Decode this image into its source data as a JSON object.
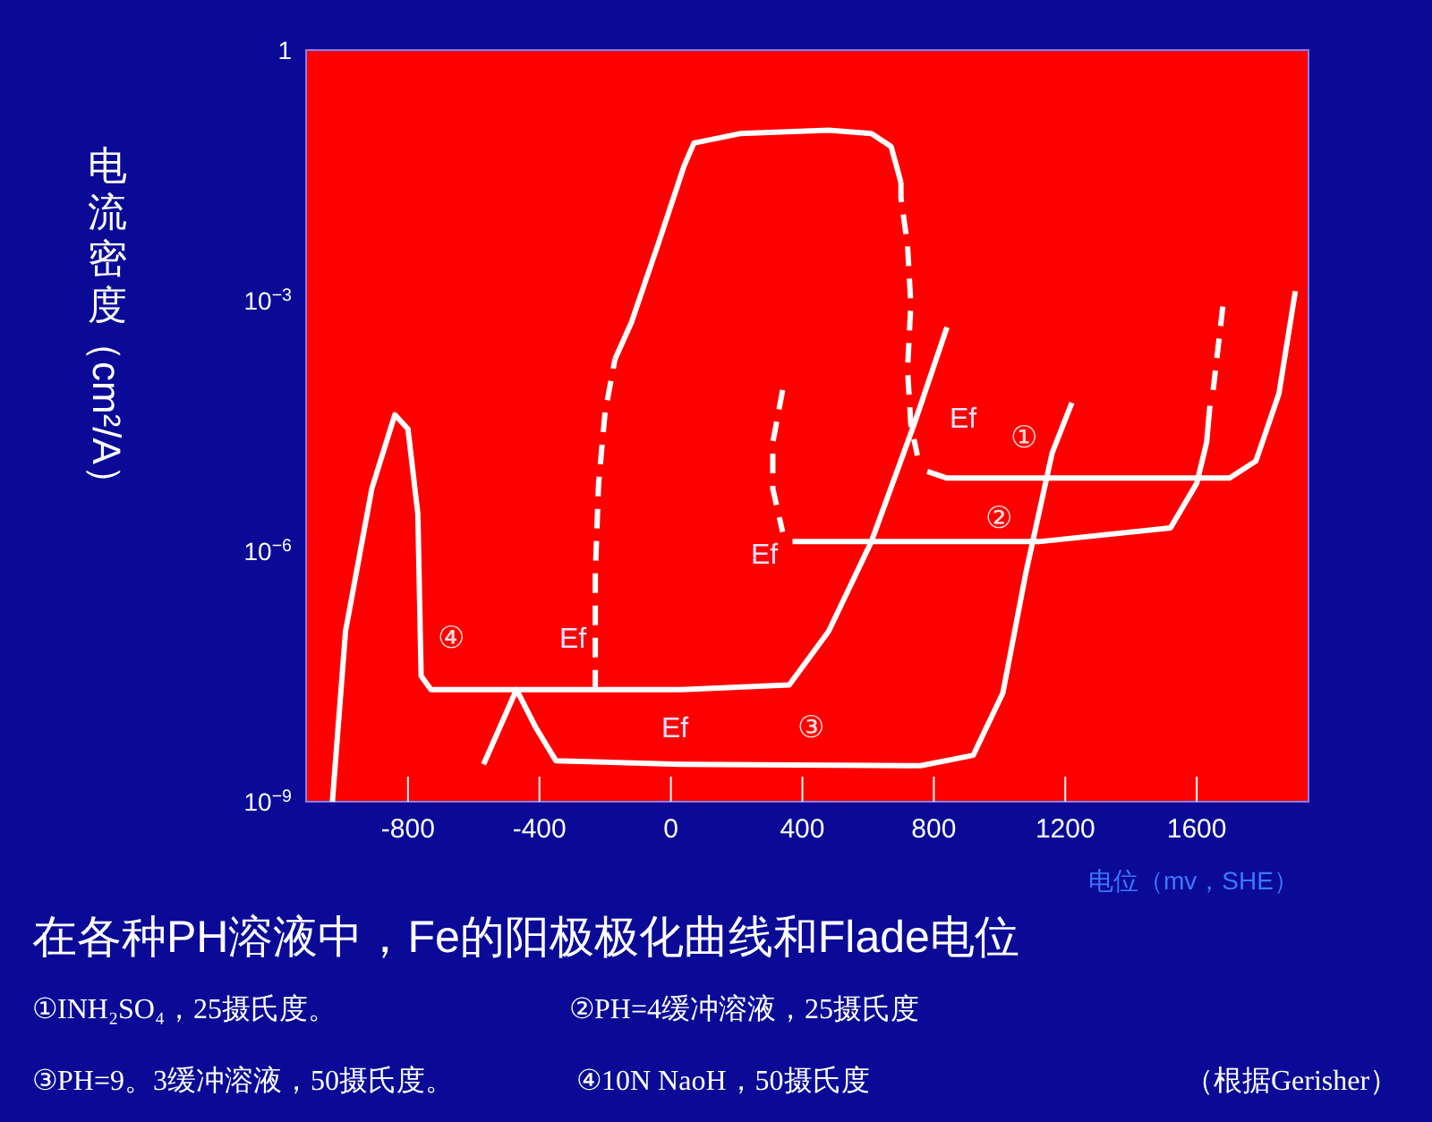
{
  "chart_data": {
    "type": "line",
    "title": "在各种PH溶液中，Fe的阳极极化曲线和Flade电位",
    "xlabel": "电位（mv，SHE）",
    "ylabel": "电流密度（cm²/A）",
    "log": true,
    "grid": false,
    "xlim": [
      -1110,
      1940
    ],
    "xticks": [
      -800,
      -400,
      0,
      400,
      800,
      1200,
      1600
    ],
    "ylim": [
      1e-09,
      1
    ],
    "yticks": [
      {
        "value": 1e-09,
        "label": "10$^{−9}$"
      },
      {
        "value": 1e-06,
        "label": "10$^{−6}$"
      },
      {
        "value": 0.001,
        "label": "10$^{−3}$"
      },
      1
    ],
    "series": [
      {
        "color": "#ffffff",
        "line_style": "dashed",
        "x": [
          -230,
          -230,
          -220,
          -200,
          -170
        ],
        "values": [
          2.2e-08,
          5.5e-07,
          6.5e-06,
          4.7e-05,
          0.0002
        ]
      },
      {
        "color": "#ffffff",
        "line_style": "solid",
        "x": [
          -170,
          -120,
          -40,
          40,
          70,
          210,
          480,
          610,
          670,
          700
        ],
        "values": [
          0.0002,
          0.00055,
          0.0046,
          0.041,
          0.077,
          0.1,
          0.11,
          0.1,
          0.07,
          0.026
        ]
      },
      {
        "color": "#ffffff",
        "line_style": "dashed",
        "x": [
          700,
          700,
          720,
          730,
          720,
          730,
          750
        ],
        "values": [
          0.026,
          0.017,
          0.0046,
          0.0009,
          0.00015,
          3.3e-05,
          1.4e-05
        ]
      },
      {
        "color": "#ffffff",
        "line_style": "solid",
        "x": [
          780,
          840,
          1300,
          1700,
          1780,
          1850,
          1900
        ],
        "values": [
          9e-06,
          7.5e-06,
          7.5e-06,
          7.5e-06,
          1.2e-05,
          7.7e-05,
          0.0013
        ]
      },
      {
        "color": "#ffffff",
        "line_style": "dashed",
        "x": [
          340,
          310,
          310,
          340
        ],
        "values": [
          8.5e-05,
          2e-05,
          5.6e-06,
          1.7e-06
        ]
      },
      {
        "color": "#ffffff",
        "line_style": "solid",
        "x": [
          370,
          1120,
          1520,
          1600,
          1630,
          1640
        ],
        "values": [
          1.3e-06,
          1.3e-06,
          1.9e-06,
          6.5e-06,
          2e-05,
          5.5e-05
        ]
      },
      {
        "color": "#ffffff",
        "line_style": "dashed",
        "x": [
          1650,
          1680
        ],
        "values": [
          8.5e-05,
          0.0009
        ]
      },
      {
        "color": "#ffffff",
        "line_style": "solid",
        "x": [
          -570,
          -470,
          -410,
          -350,
          30,
          760,
          920,
          1010,
          1080,
          1160,
          1220
        ],
        "values": [
          2.8e-09,
          2.2e-08,
          7.6e-09,
          3.1e-09,
          2.8e-09,
          2.7e-09,
          3.6e-09,
          2e-08,
          5.5e-07,
          1.5e-05,
          6e-05
        ]
      },
      {
        "color": "#ffffff",
        "line_style": "solid",
        "x": [
          -1030,
          -990,
          -910,
          -840,
          -800,
          -770,
          -760,
          -730,
          30,
          360,
          480,
          610,
          740,
          840
        ],
        "values": [
          1e-09,
          1.1e-07,
          5.6e-06,
          4.3e-05,
          2.9e-05,
          2.8e-06,
          3.2e-08,
          2.2e-08,
          2.2e-08,
          2.5e-08,
          1.1e-07,
          1.3e-06,
          3.3e-05,
          0.00048
        ]
      }
    ],
    "annotations": [
      "①",
      "②",
      "③",
      "④",
      "Ef",
      "Ef",
      "Ef",
      "Ef",
      "①INH₂SO₄，25摄氏度。",
      "②PH=4缓冲溶液，25摄氏度",
      "③PH=9。3缓冲溶液，50摄氏度。",
      "④10N NaoH，50摄氏度",
      "（根据Gerisher）"
    ]
  }
}
